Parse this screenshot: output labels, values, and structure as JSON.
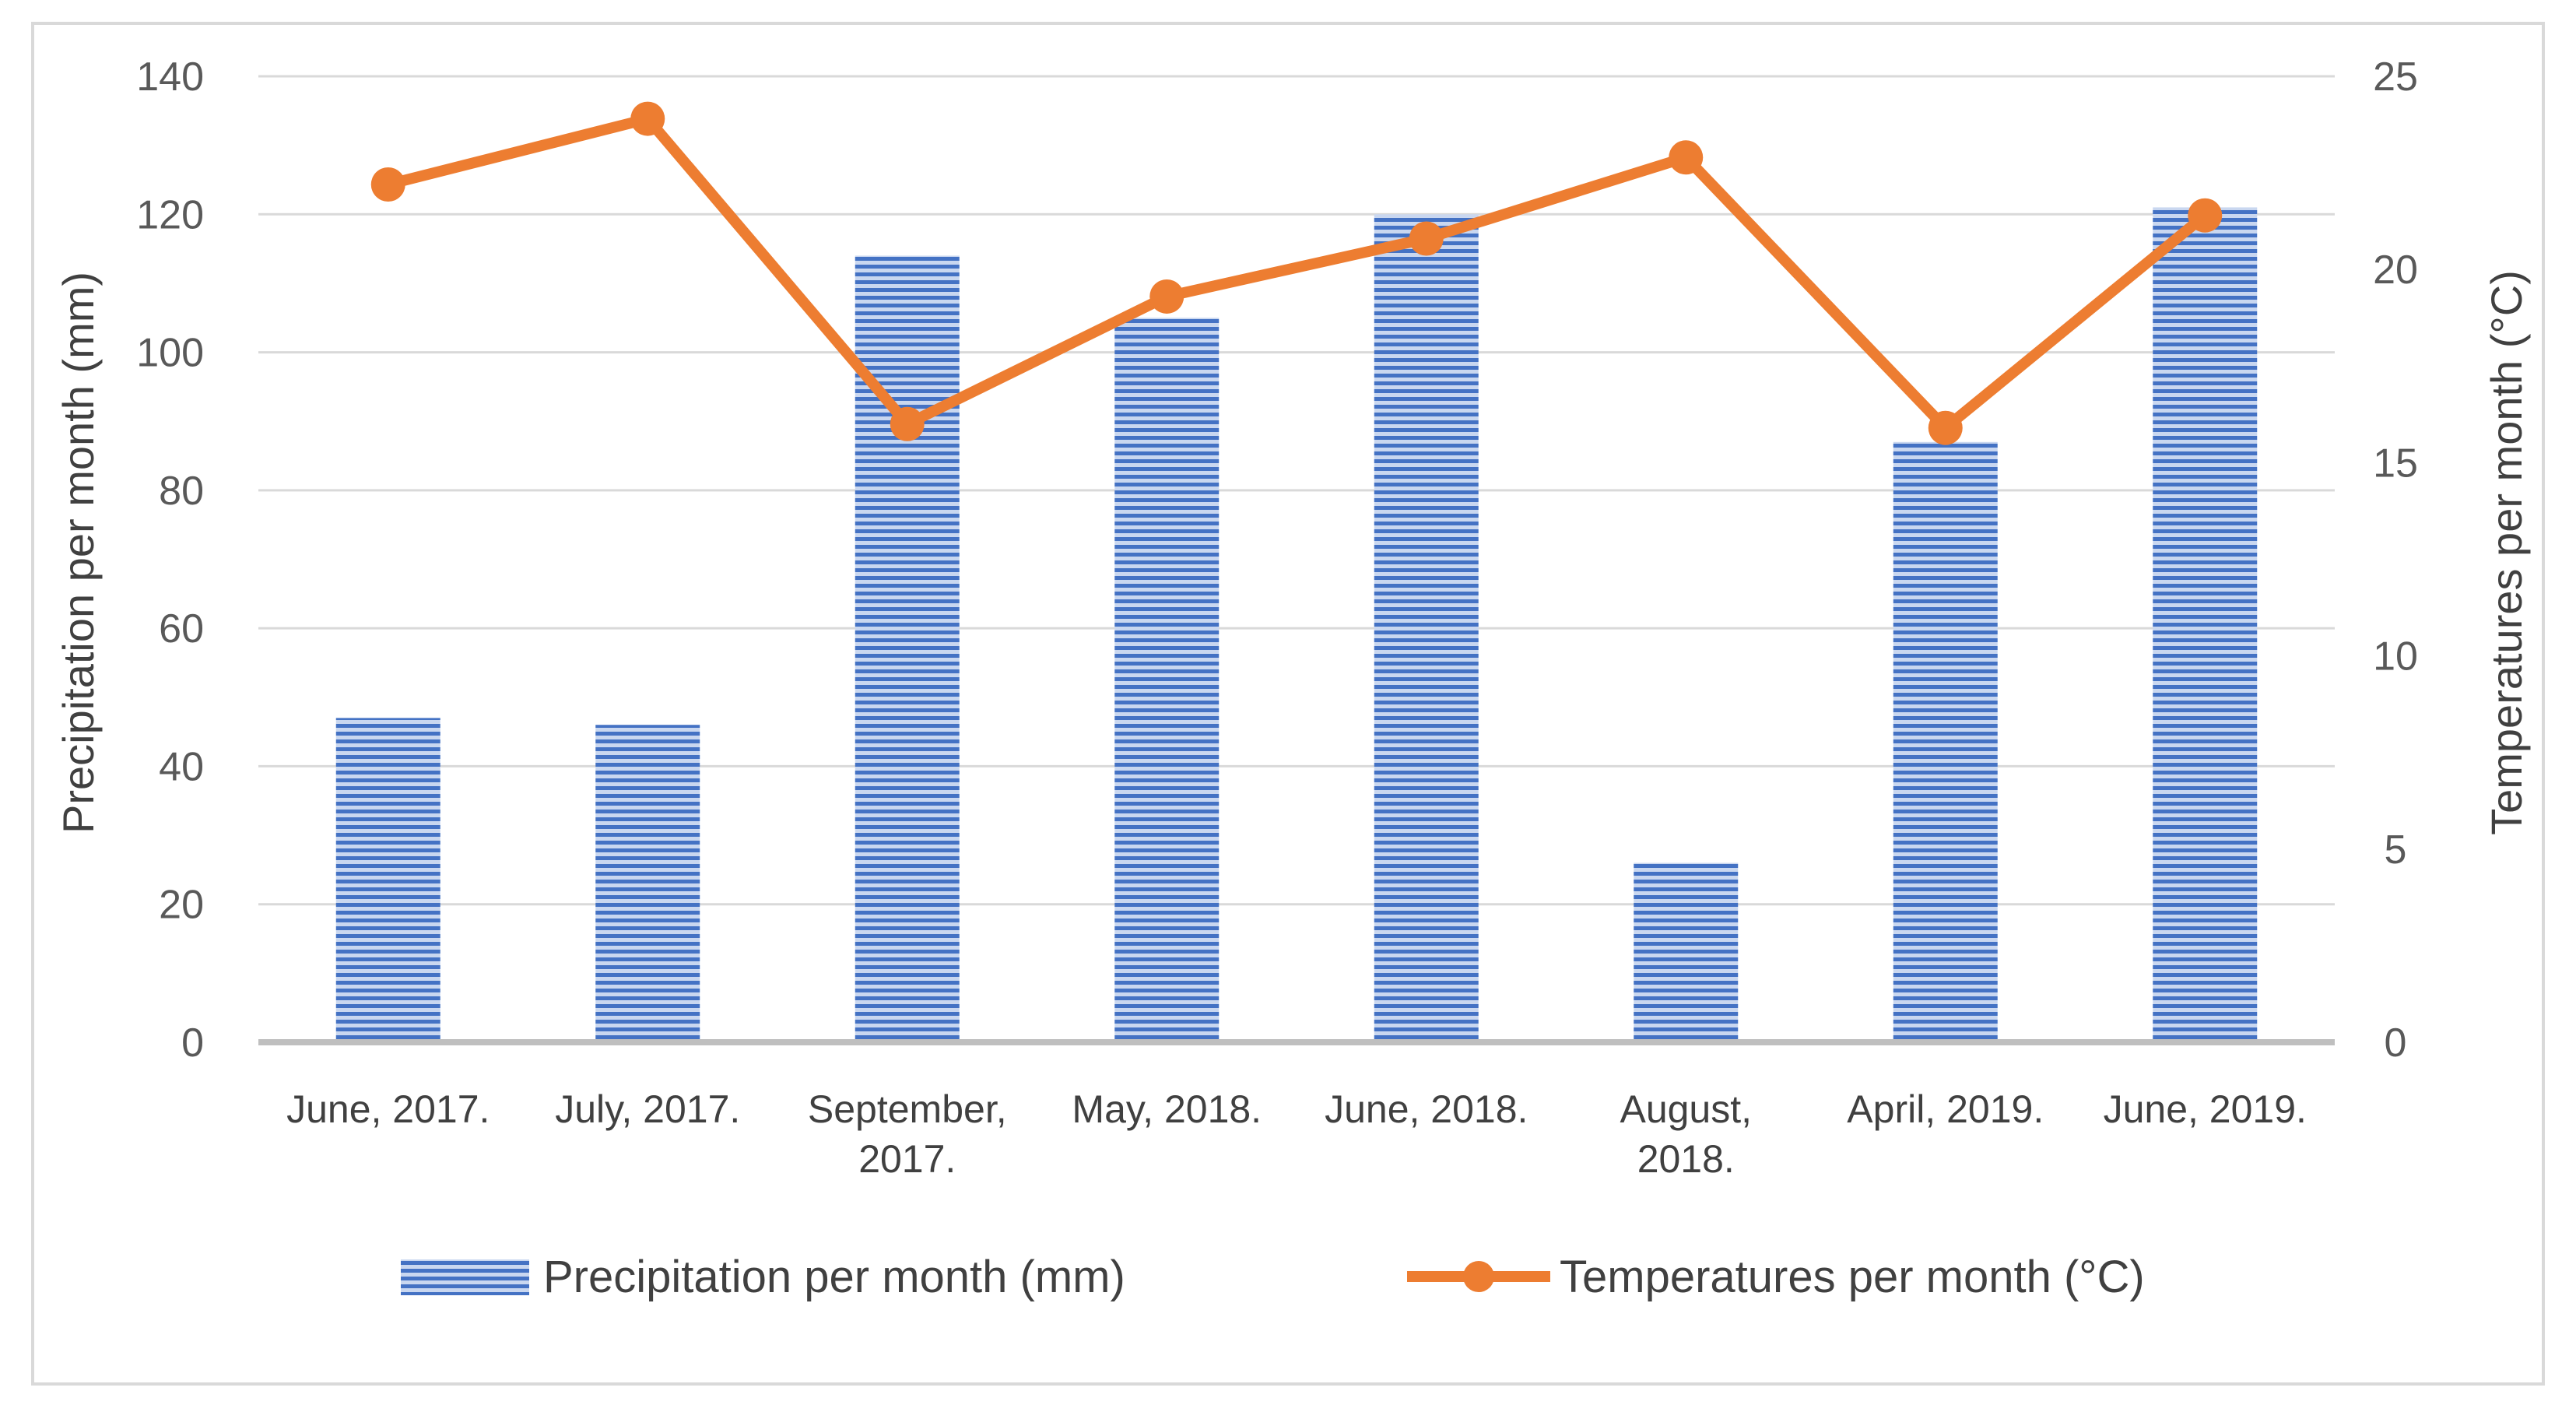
{
  "chart_data": {
    "type": "bar",
    "title": "",
    "categories": [
      [
        "June, 2017."
      ],
      [
        "July, 2017."
      ],
      [
        "September,",
        "2017."
      ],
      [
        "May, 2018."
      ],
      [
        "June, 2018."
      ],
      [
        "August,",
        "2018."
      ],
      [
        "April, 2019."
      ],
      [
        "June, 2019."
      ]
    ],
    "series": [
      {
        "name": "Precipitation per month (mm)",
        "kind": "bar",
        "axis": "left",
        "color": "#4472c4",
        "values": [
          47,
          46,
          114,
          105,
          120,
          26,
          87,
          121
        ]
      },
      {
        "name": "Temperatures per month (°C)",
        "kind": "line",
        "axis": "right",
        "color": "#ed7d31",
        "values": [
          22.2,
          23.9,
          16.0,
          19.3,
          20.8,
          22.9,
          15.9,
          21.4
        ]
      }
    ],
    "ylabel": "Precipitation per month (mm)",
    "y2label": "Temperatures per month (°C)",
    "ylim": [
      0,
      140
    ],
    "y2lim": [
      0,
      25
    ],
    "yticks": [
      0,
      20,
      40,
      60,
      80,
      100,
      120,
      140
    ],
    "y2ticks": [
      0,
      5,
      10,
      15,
      20,
      25
    ],
    "grid": true,
    "legend": "bottom"
  }
}
